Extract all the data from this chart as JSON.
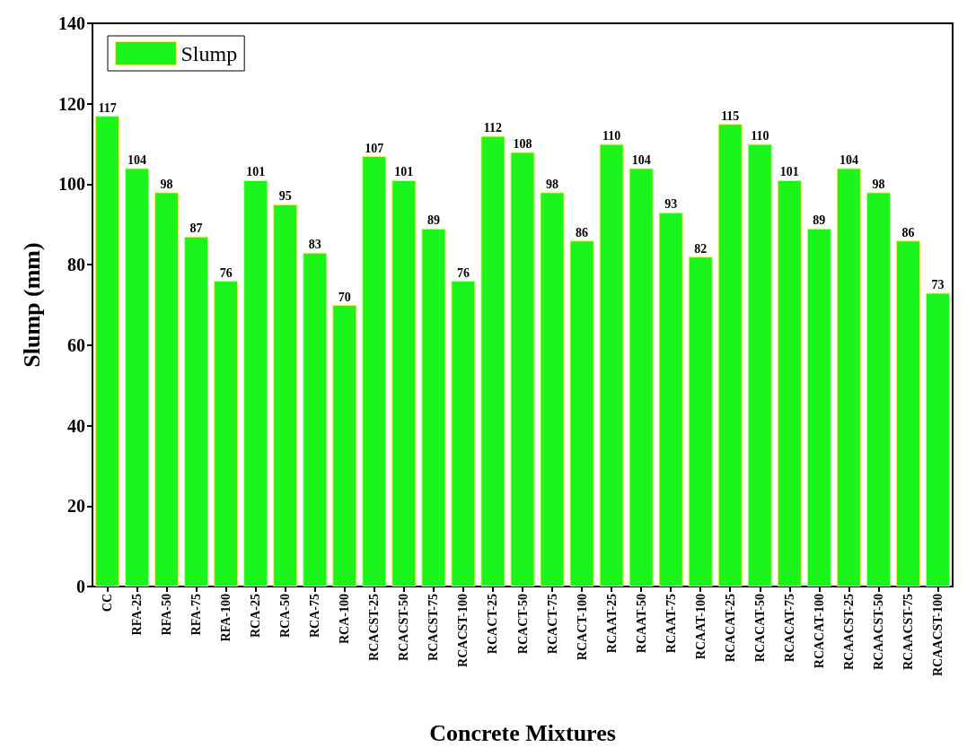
{
  "chart_data": {
    "type": "bar",
    "xlabel": "Concrete Mixtures",
    "ylabel": "Slump (mm)",
    "categories": [
      "CC",
      "RFA-25",
      "RFA-50",
      "RFA-75",
      "RFA-100",
      "RCA-25",
      "RCA-50",
      "RCA-75",
      "RCA-100",
      "RCACST-25",
      "RCACST-50",
      "RCACST-75",
      "RCACST-100",
      "RCACT-25",
      "RCACT-50",
      "RCACT-75",
      "RCACT-100",
      "RCAAT-25",
      "RCAAT-50",
      "RCAAT-75",
      "RCAAT-100",
      "RCACAT-25",
      "RCACAT-50",
      "RCACAT-75",
      "RCACAT-100",
      "RCAACST-25",
      "RCAACST-50",
      "RCAACST-75",
      "RCAACST-100"
    ],
    "series": [
      {
        "name": "Slump",
        "color": "#1cf51c",
        "values": [
          117,
          104,
          98,
          87,
          76,
          101,
          95,
          83,
          70,
          107,
          101,
          89,
          76,
          112,
          108,
          98,
          86,
          110,
          104,
          93,
          82,
          115,
          110,
          101,
          89,
          104,
          98,
          86,
          73
        ]
      }
    ],
    "ylim": [
      0,
      140
    ],
    "yticks": [
      0,
      20,
      40,
      60,
      80,
      100,
      120,
      140
    ],
    "data_labels": true,
    "legend": "top left",
    "grid": false
  }
}
